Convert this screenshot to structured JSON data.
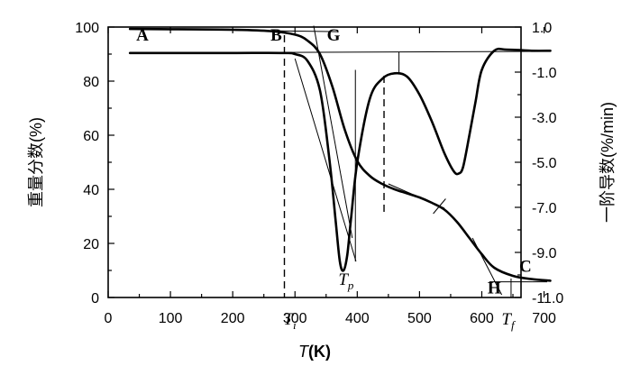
{
  "chart_data": {
    "type": "line",
    "xlabel": {
      "italic": "T",
      "rest": "(K)"
    },
    "ylabel_left": "重量分数(%)",
    "ylabel_right": "一阶导数(%/min)",
    "xlim": [
      0,
      720
    ],
    "ylim_left": [
      0,
      100
    ],
    "ylim_right": [
      -11.0,
      1.0
    ],
    "x_ticks": [
      "0",
      "100",
      "200",
      "300",
      "400",
      "500",
      "600",
      "700"
    ],
    "y_left_ticks": [
      "0",
      "20",
      "40",
      "60",
      "80",
      "100"
    ],
    "y_right_ticks": [
      "-11.0",
      "-9.0",
      "-7.0",
      "-5.0",
      "-3.0",
      "-1.0",
      "1.0"
    ],
    "series": [
      {
        "axis": "left",
        "x": [
          35,
          100,
          200,
          260,
          300,
          320,
          340,
          360,
          380,
          400,
          420,
          440,
          460,
          480,
          500,
          520,
          540,
          560,
          580,
          600,
          620,
          650,
          680,
          710
        ],
        "values": [
          99.3,
          99.2,
          99.0,
          98.5,
          97.2,
          95.0,
          90.0,
          78.0,
          62.0,
          50.5,
          45.0,
          42.0,
          40.0,
          38.5,
          37.0,
          35.0,
          32.5,
          28.0,
          22.0,
          16.0,
          11.0,
          8.0,
          6.8,
          6.2
        ]
      },
      {
        "axis": "right",
        "x": [
          35,
          100,
          200,
          280,
          300,
          320,
          340,
          355,
          365,
          372,
          378,
          384,
          390,
          400,
          420,
          440,
          460,
          480,
          500,
          520,
          540,
          555,
          563,
          570,
          580,
          590,
          600,
          620,
          640,
          680,
          710
        ],
        "values": [
          -0.15,
          -0.15,
          -0.15,
          -0.15,
          -0.2,
          -0.5,
          -1.8,
          -4.8,
          -7.5,
          -9.4,
          -9.8,
          -9.1,
          -7.5,
          -5.0,
          -2.2,
          -1.3,
          -1.05,
          -1.2,
          -2.0,
          -3.2,
          -4.6,
          -5.4,
          -5.5,
          -5.2,
          -3.8,
          -2.3,
          -0.9,
          -0.05,
          0.0,
          -0.05,
          -0.05
        ]
      }
    ],
    "vertical_markers": [
      {
        "label": "T",
        "sub": "i",
        "x": 283
      },
      {
        "label": "",
        "x": 443
      }
    ],
    "point_labels": [
      {
        "text": "A",
        "x": 55,
        "y": 95.0
      },
      {
        "text": "B",
        "x": 270,
        "y": 95.0
      },
      {
        "text": "G",
        "x": 362,
        "y": 95.0
      },
      {
        "text": "C",
        "x": 670,
        "y": 9.5
      },
      {
        "text": "H",
        "x": 620,
        "y": 1.5
      }
    ],
    "tp_label": {
      "text": "T",
      "sub": "p",
      "x": 382
    },
    "tf_label": {
      "text": "T",
      "sub": "f",
      "x": 642
    }
  }
}
